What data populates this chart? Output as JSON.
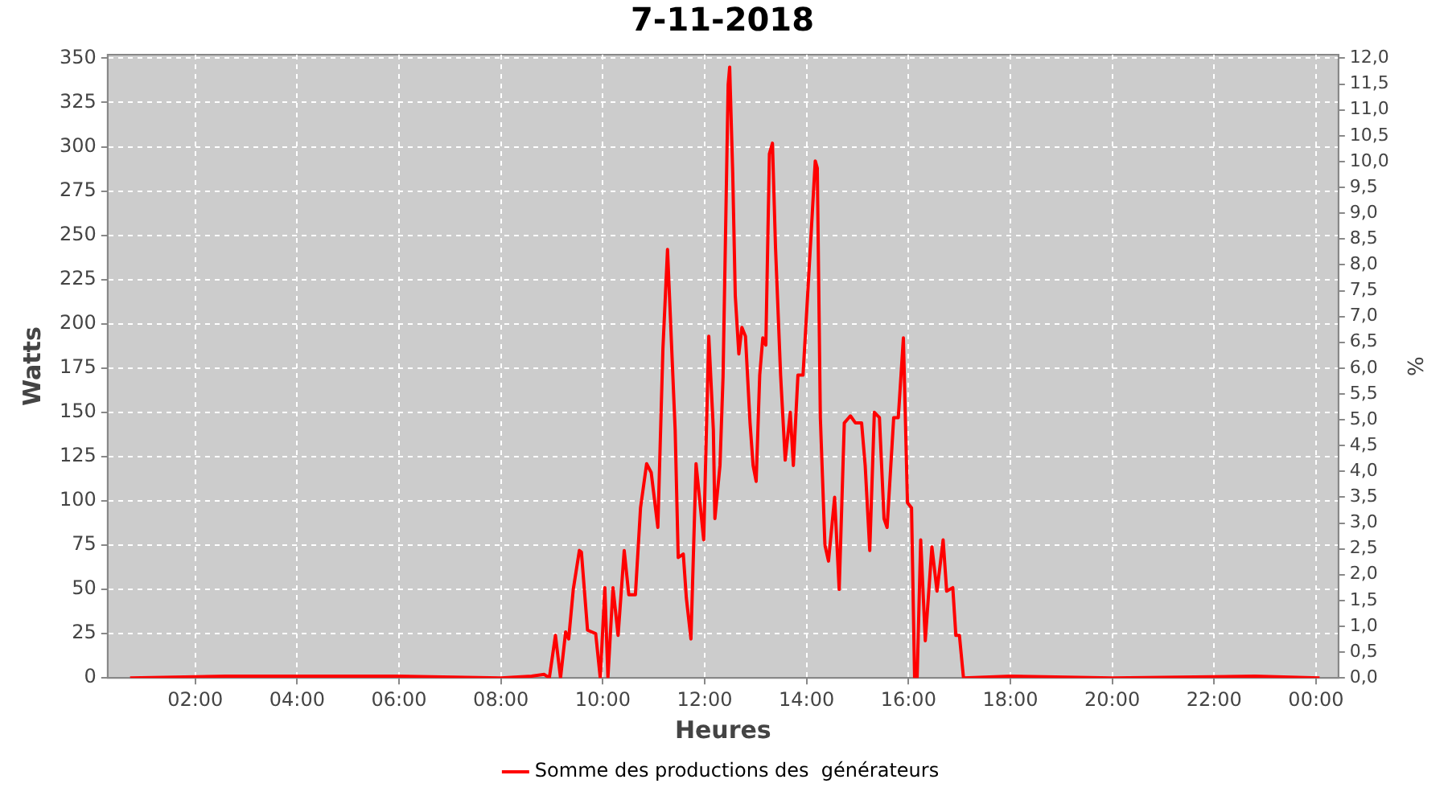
{
  "chart_data": {
    "type": "line",
    "title": "7-11-2018",
    "xlabel": "Heures",
    "ylabel": "Watts",
    "y2label": "%",
    "xlim": [
      0.28,
      24.44
    ],
    "xticks": [
      {
        "value": 2,
        "label": "02:00"
      },
      {
        "value": 4,
        "label": "04:00"
      },
      {
        "value": 6,
        "label": "06:00"
      },
      {
        "value": 8,
        "label": "08:00"
      },
      {
        "value": 10,
        "label": "10:00"
      },
      {
        "value": 12,
        "label": "12:00"
      },
      {
        "value": 14,
        "label": "14:00"
      },
      {
        "value": 16,
        "label": "16:00"
      },
      {
        "value": 18,
        "label": "18:00"
      },
      {
        "value": 20,
        "label": "20:00"
      },
      {
        "value": 22,
        "label": "22:00"
      },
      {
        "value": 24,
        "label": "00:00"
      }
    ],
    "ylim": [
      0,
      352
    ],
    "yticks": [
      0,
      25,
      50,
      75,
      100,
      125,
      150,
      175,
      200,
      225,
      250,
      275,
      300,
      325,
      350
    ],
    "y2lim": [
      0,
      12.07
    ],
    "y2ticks": [
      {
        "value": 0,
        "label": "0,0"
      },
      {
        "value": 0.5,
        "label": "0,5"
      },
      {
        "value": 1,
        "label": "1,0"
      },
      {
        "value": 1.5,
        "label": "1,5"
      },
      {
        "value": 2,
        "label": "2,0"
      },
      {
        "value": 2.5,
        "label": "2,5"
      },
      {
        "value": 3,
        "label": "3,0"
      },
      {
        "value": 3.5,
        "label": "3,5"
      },
      {
        "value": 4,
        "label": "4,0"
      },
      {
        "value": 4.5,
        "label": "4,5"
      },
      {
        "value": 5,
        "label": "5,0"
      },
      {
        "value": 5.5,
        "label": "5,5"
      },
      {
        "value": 6,
        "label": "6,0"
      },
      {
        "value": 6.5,
        "label": "6,5"
      },
      {
        "value": 7,
        "label": "7,0"
      },
      {
        "value": 7.5,
        "label": "7,5"
      },
      {
        "value": 8,
        "label": "8,0"
      },
      {
        "value": 8.5,
        "label": "8,5"
      },
      {
        "value": 9,
        "label": "9,0"
      },
      {
        "value": 9.5,
        "label": "9,5"
      },
      {
        "value": 10,
        "label": "10,0"
      },
      {
        "value": 10.5,
        "label": "10,5"
      },
      {
        "value": 11,
        "label": "11,0"
      },
      {
        "value": 11.5,
        "label": "11,5"
      },
      {
        "value": 12,
        "label": "12,0"
      }
    ],
    "grid": true,
    "legend": "bottom",
    "marker": "none",
    "line_style": "solid",
    "x": [
      0.72,
      2.6,
      4.5,
      6.0,
      8.0,
      8.6,
      8.85,
      8.95,
      9.07,
      9.17,
      9.27,
      9.33,
      9.42,
      9.54,
      9.58,
      9.7,
      9.86,
      9.95,
      10.04,
      10.1,
      10.2,
      10.3,
      10.42,
      10.51,
      10.64,
      10.74,
      10.86,
      10.95,
      11.08,
      11.18,
      11.27,
      11.42,
      11.48,
      11.58,
      11.64,
      11.73,
      11.83,
      11.98,
      12.08,
      12.17,
      12.2,
      12.3,
      12.36,
      12.46,
      12.49,
      12.55,
      12.6,
      12.67,
      12.73,
      12.8,
      12.89,
      12.95,
      13.01,
      13.08,
      13.14,
      13.2,
      13.27,
      13.33,
      13.39,
      13.49,
      13.58,
      13.68,
      13.74,
      13.83,
      13.93,
      14.02,
      14.17,
      14.21,
      14.27,
      14.36,
      14.43,
      14.55,
      14.64,
      14.74,
      14.86,
      14.96,
      15.08,
      15.15,
      15.24,
      15.33,
      15.43,
      15.52,
      15.58,
      15.71,
      15.8,
      15.9,
      15.98,
      16.06,
      16.12,
      16.17,
      16.24,
      16.33,
      16.46,
      16.56,
      16.68,
      16.75,
      16.87,
      16.93,
      17.0,
      17.08,
      18.0,
      20.0,
      22.8,
      24.07
    ],
    "series": [
      {
        "name": "Somme des productions des  générateurs",
        "color": "#ff0000",
        "values": [
          0,
          1,
          1,
          1,
          0,
          1,
          2,
          0,
          24,
          0,
          26,
          22,
          50,
          72,
          71,
          27,
          25,
          0,
          51,
          0,
          51,
          24,
          72,
          47,
          47,
          96,
          121,
          116,
          85,
          186,
          242,
          140,
          68,
          70,
          45,
          22,
          121,
          78,
          193,
          140,
          90,
          120,
          170,
          335,
          345,
          285,
          216,
          183,
          198,
          193,
          144,
          120,
          111,
          171,
          192,
          188,
          296,
          302,
          243,
          171,
          123,
          150,
          120,
          171,
          171,
          216,
          292,
          288,
          147,
          75,
          66,
          102,
          50,
          144,
          148,
          144,
          144,
          120,
          72,
          150,
          147,
          90,
          85,
          147,
          147,
          192,
          99,
          96,
          0,
          0,
          78,
          21,
          74,
          49,
          78,
          49,
          51,
          24,
          24,
          0,
          1,
          0,
          1,
          0
        ]
      }
    ]
  }
}
